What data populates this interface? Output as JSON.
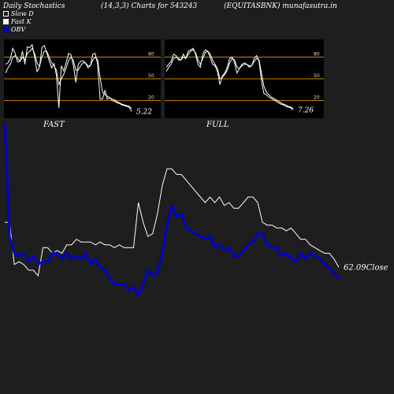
{
  "header": {
    "left": "Daily Stochastics",
    "center": "(14,3,3) Charts for 543243",
    "right": "(EQUITASBNK) munafasutra.in"
  },
  "legend": [
    {
      "label": "Slow  D",
      "swatch": "slow"
    },
    {
      "label": "Fast K",
      "swatch": "fast"
    },
    {
      "label": "OBV",
      "swatch": "obv"
    }
  ],
  "colors": {
    "background": "#1e1e1e",
    "panel": "#000000",
    "guide": "#c8860a",
    "price": "#ffffff",
    "obv": "#0000cc"
  },
  "chart_data": [
    {
      "type": "line",
      "panel": "FAST",
      "label": "FAST",
      "ylim": [
        0,
        100
      ],
      "levels": [
        20,
        50,
        80
      ],
      "tick_labels": [
        "80",
        "50",
        "20"
      ],
      "last_value_label": "5.22",
      "series": [
        {
          "values": [
            70,
            72,
            78,
            92,
            85,
            73,
            74,
            88,
            70,
            94,
            93,
            97,
            80,
            60,
            66,
            93,
            96,
            86,
            75,
            65,
            71,
            55,
            10,
            68,
            61,
            72,
            85,
            83,
            68,
            45,
            70,
            74,
            75,
            72,
            65,
            68,
            84,
            85,
            70,
            22,
            22,
            34,
            22,
            24,
            20,
            19,
            17,
            16,
            14,
            13,
            12,
            11,
            5
          ]
        },
        {
          "values": [
            58,
            65,
            70,
            80,
            82,
            78,
            74,
            80,
            76,
            85,
            88,
            92,
            85,
            72,
            67,
            80,
            88,
            88,
            80,
            72,
            68,
            62,
            42,
            50,
            56,
            65,
            75,
            80,
            75,
            62,
            62,
            68,
            72,
            72,
            68,
            68,
            76,
            80,
            76,
            52,
            32,
            28,
            26,
            24,
            22,
            21,
            18,
            17,
            15,
            14,
            13,
            12,
            9
          ]
        }
      ]
    },
    {
      "type": "line",
      "panel": "FULL",
      "label": "FULL",
      "ylim": [
        0,
        100
      ],
      "levels": [
        20,
        50,
        80
      ],
      "tick_labels": [
        "80",
        "50",
        "20"
      ],
      "last_value_label": "7.26",
      "series": [
        {
          "values": [
            66,
            70,
            74,
            84,
            82,
            76,
            76,
            84,
            78,
            88,
            90,
            92,
            84,
            70,
            66,
            84,
            90,
            88,
            80,
            70,
            68,
            60,
            42,
            54,
            58,
            66,
            78,
            80,
            72,
            58,
            64,
            70,
            72,
            70,
            66,
            68,
            78,
            82,
            74,
            48,
            30,
            28,
            25,
            23,
            21,
            19,
            17,
            15,
            14,
            12,
            11,
            10,
            7
          ]
        },
        {
          "values": [
            60,
            66,
            70,
            78,
            80,
            78,
            76,
            80,
            78,
            84,
            88,
            90,
            86,
            76,
            70,
            78,
            86,
            88,
            84,
            76,
            70,
            64,
            50,
            52,
            56,
            62,
            72,
            78,
            76,
            66,
            64,
            68,
            70,
            70,
            68,
            68,
            74,
            78,
            76,
            58,
            40,
            32,
            28,
            25,
            23,
            21,
            19,
            17,
            15,
            14,
            12,
            11,
            9
          ]
        }
      ]
    },
    {
      "type": "line",
      "panel": "main",
      "last_value_label": "62.09",
      "close_label": "Close",
      "series": [
        {
          "name": "OBV",
          "values": [
            118,
            78,
            72,
            71,
            72,
            69,
            71,
            68,
            69,
            69,
            72,
            72,
            70,
            72,
            70,
            71,
            70,
            72,
            68,
            70,
            67,
            66,
            63,
            61,
            61,
            61,
            59,
            60,
            57,
            61,
            66,
            64,
            65,
            72,
            82,
            89,
            85,
            86,
            81,
            80,
            79,
            78,
            77,
            78,
            74,
            75,
            73,
            74,
            71,
            71,
            73,
            75,
            76,
            79,
            79,
            75,
            74,
            74,
            71,
            72,
            70,
            69,
            72,
            70,
            72,
            71,
            70,
            68,
            67,
            65,
            63
          ]
        },
        {
          "name": "Price",
          "values": [
            83,
            83,
            68,
            69,
            68,
            66,
            66,
            64,
            74,
            74,
            72,
            73,
            72,
            75,
            75,
            77,
            76,
            76,
            76,
            75,
            76,
            75,
            75,
            74,
            75,
            74,
            74,
            74,
            90,
            83,
            78,
            79,
            86,
            96,
            102,
            102,
            100,
            100,
            98,
            96,
            94,
            92,
            90,
            92,
            90,
            92,
            89,
            90,
            88,
            88,
            90,
            92,
            92,
            90,
            83,
            82,
            82,
            81,
            81,
            80,
            81,
            79,
            77,
            77,
            75,
            74,
            73,
            72,
            72,
            70,
            67
          ]
        }
      ]
    }
  ]
}
